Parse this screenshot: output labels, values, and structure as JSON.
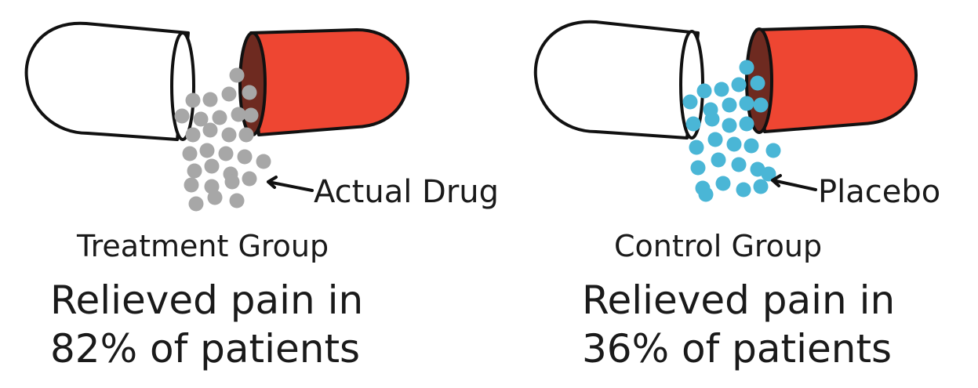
{
  "colors": {
    "background": "#ffffff",
    "capsule_red": "#ee4632",
    "capsule_red_inner": "#6e2a20",
    "capsule_white": "#ffffff",
    "outline": "#111111",
    "drug_granules": "#a7a7a7",
    "placebo_granules": "#4ab6d6"
  },
  "treatment": {
    "substance_label": "Actual Drug",
    "group_label": "Treatment Group",
    "result_line1": "Relieved pain in",
    "result_line2": "82% of patients",
    "relief_percent": 82
  },
  "control": {
    "substance_label": "Placebo",
    "group_label": "Control Group",
    "result_line1": "Relieved pain in",
    "result_line2": "36% of patients",
    "relief_percent": 36
  }
}
